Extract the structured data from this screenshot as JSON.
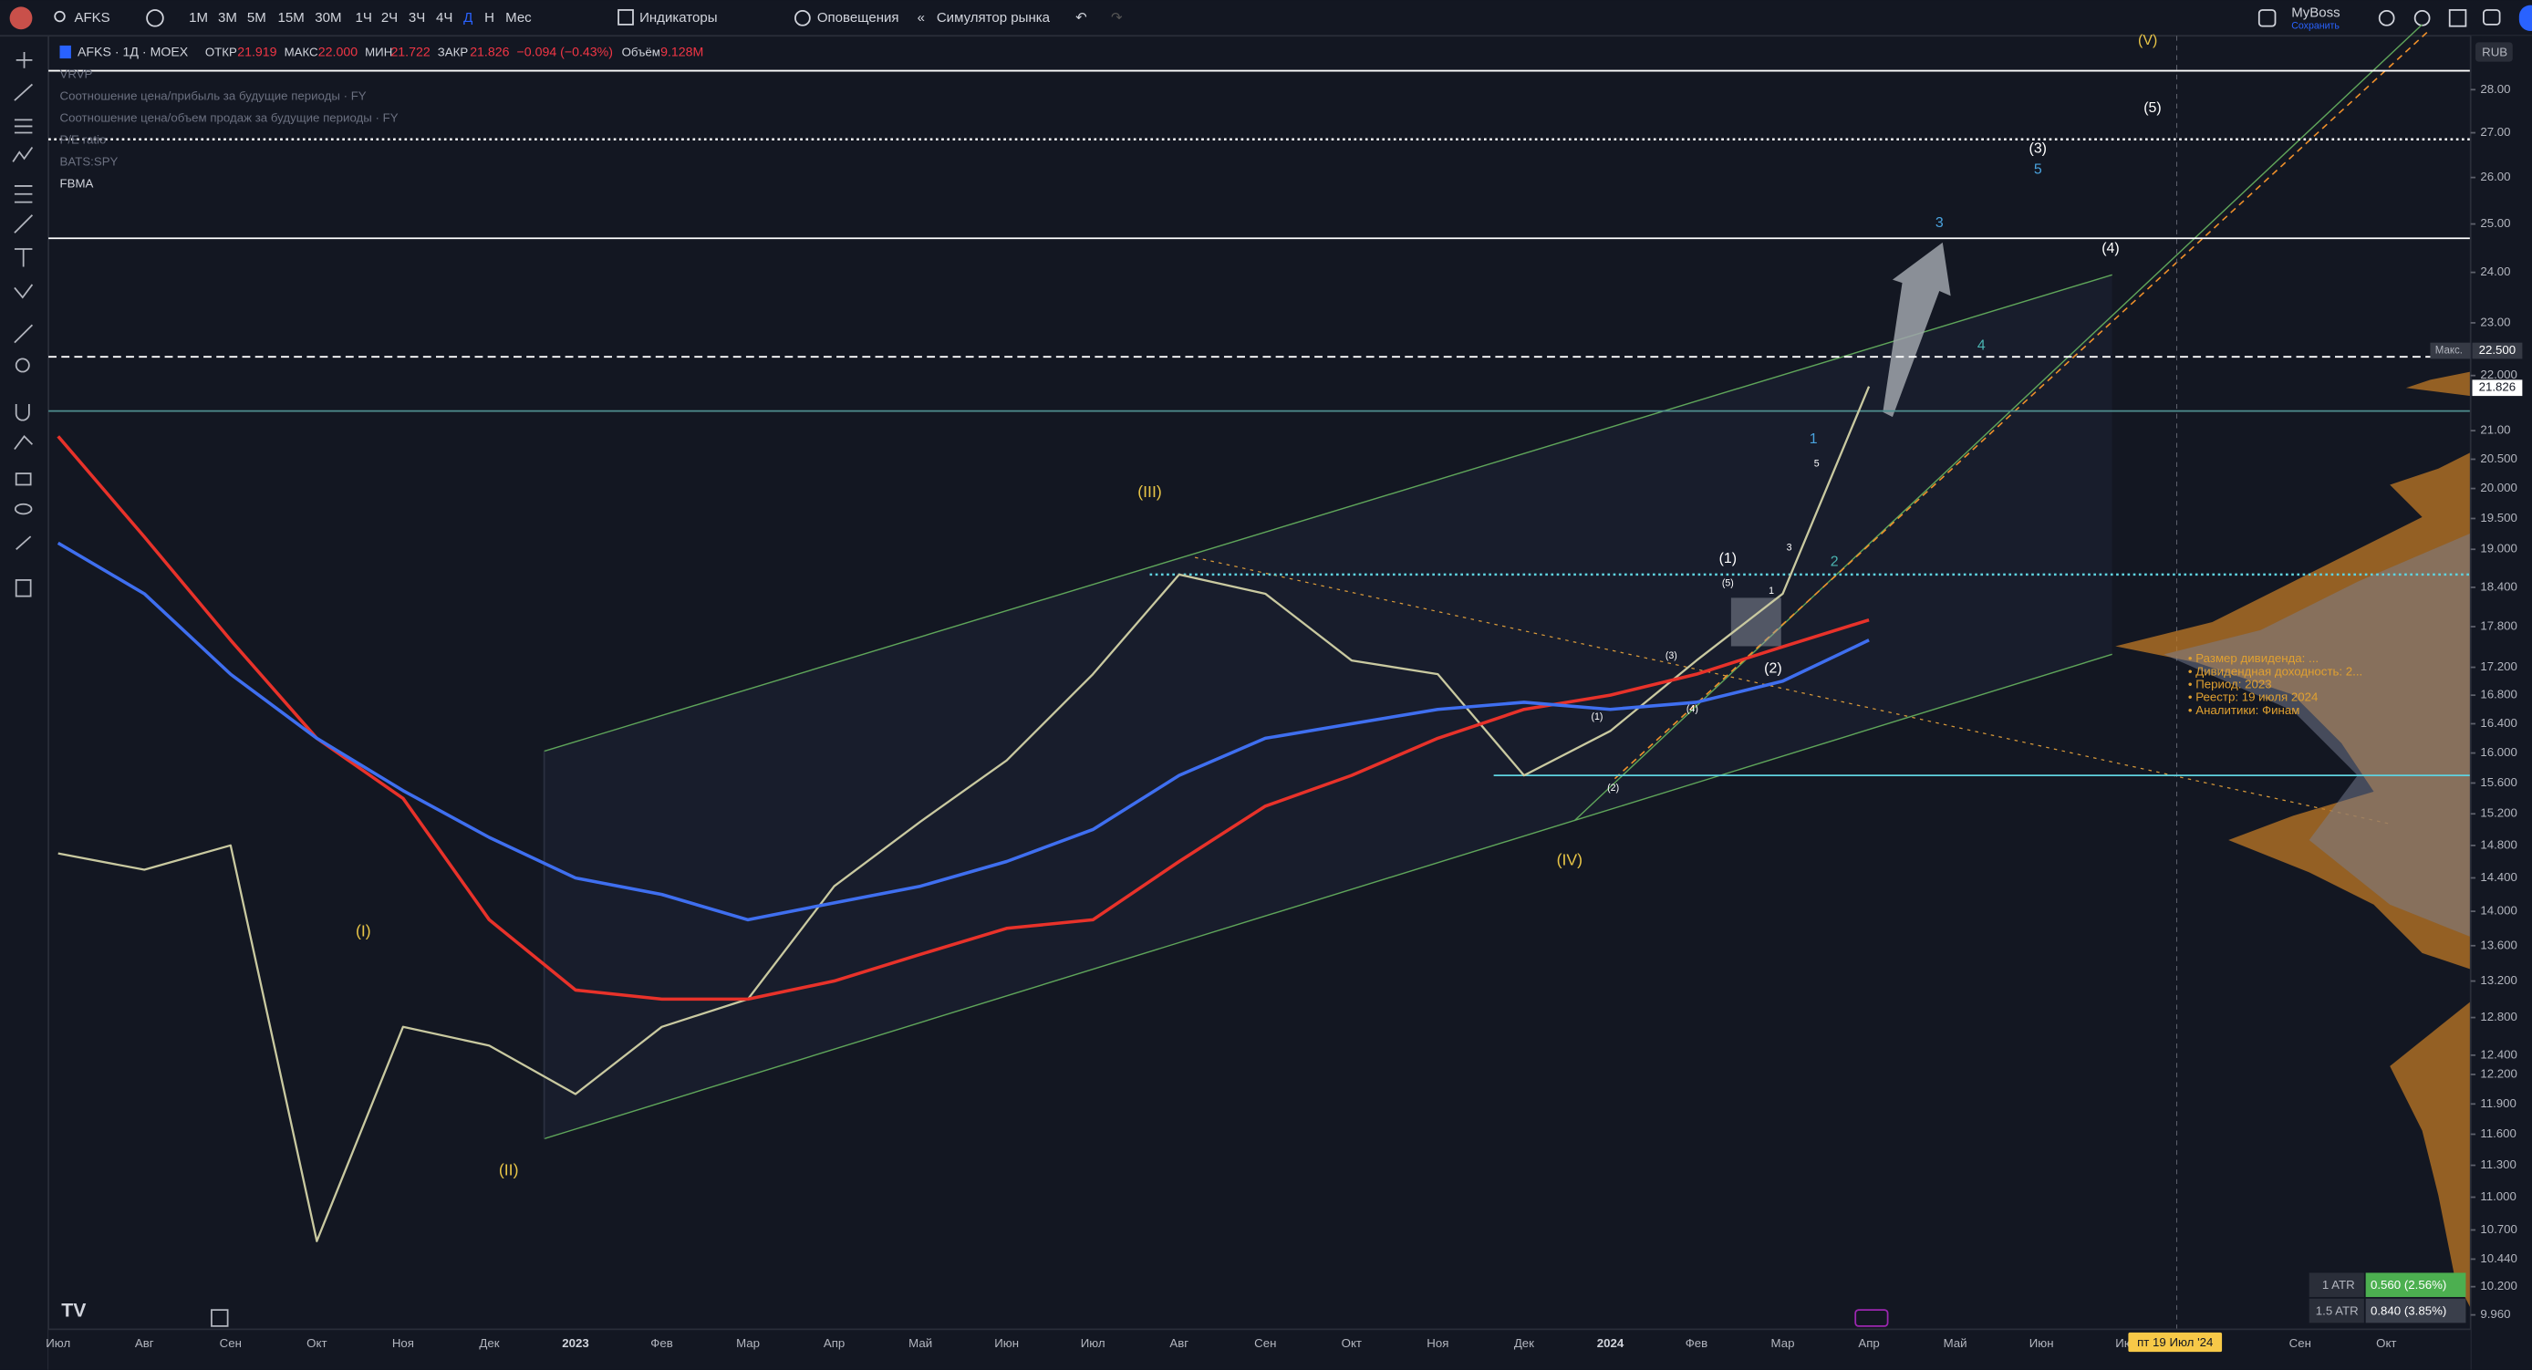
{
  "toolbar": {
    "symbol": "AFKS",
    "intervals": [
      "1M",
      "3M",
      "5M",
      "15M",
      "30M",
      "1Ч",
      "2Ч",
      "3Ч",
      "4Ч",
      "Д",
      "Н",
      "Мес"
    ],
    "indicators": "Индикаторы",
    "alerts": "Оповещения",
    "replay": "Симулятор рынка",
    "account": "MyBoss",
    "save": "Сохранить"
  },
  "legend": {
    "title": "AFKS · 1Д · MOEX",
    "open_label": "ОТКР",
    "open": "21.919",
    "high_label": "МАКС",
    "high": "22.000",
    "low_label": "МИН",
    "low": "21.722",
    "close_label": "ЗАКР",
    "close": "21.826",
    "change": "−0.094 (−0.43%)",
    "volume_label": "Объём",
    "volume": "9.128M",
    "studies": [
      "VRVP",
      "Соотношение цена/прибыль за будущие периоды · FY",
      "Соотношение цена/объем продаж за будущие периоды · FY",
      "P/E ratio",
      "BATS:SPY",
      "FBMA"
    ]
  },
  "dividend_note": [
    "• Размер дивиденда: ...",
    "• Дивидендная доходность: 2...",
    "• Период: 2023",
    "• Реестр: 19 июля 2024",
    "• Аналитики: Финам"
  ],
  "price_scale": {
    "currency": "RUB",
    "max_label": "Макс.",
    "max": "22.500",
    "last": "21.826"
  },
  "atr": [
    {
      "label": "1 ATR",
      "value": "0.560 (2.56%)"
    },
    {
      "label": "1.5 ATR",
      "value": "0.840 (3.85%)"
    }
  ],
  "crosshair_date": "пт 19 Июл '24",
  "chart_data": {
    "type": "line",
    "log_scale": true,
    "categories": [
      "Июл",
      "Авг",
      "Сен",
      "Окт",
      "Ноя",
      "Дек",
      "2023",
      "Фев",
      "Мар",
      "Апр",
      "Май",
      "Июн",
      "Июл",
      "Авг",
      "Сен",
      "Окт",
      "Ноя",
      "Дек",
      "2024",
      "Фев",
      "Мар",
      "Апр",
      "Май",
      "Июн",
      "Июл",
      null,
      "Сен",
      "Окт"
    ],
    "series": [
      {
        "name": "AFKS",
        "color": "#c9c9a0",
        "values": [
          14.7,
          14.5,
          14.8,
          10.6,
          12.7,
          12.5,
          12.0,
          12.7,
          13.0,
          14.3,
          15.1,
          15.9,
          17.1,
          18.6,
          18.3,
          17.3,
          17.1,
          15.7,
          16.3,
          17.3,
          18.3,
          21.8,
          null,
          null,
          null,
          null,
          null,
          null
        ]
      },
      {
        "name": "MA 200",
        "color": "#e8322a",
        "values": [
          20.9,
          19.2,
          17.6,
          16.2,
          15.4,
          13.9,
          13.1,
          13.0,
          13.0,
          13.2,
          13.5,
          13.8,
          13.9,
          14.6,
          15.3,
          15.7,
          16.2,
          16.6,
          16.8,
          17.1,
          17.5,
          17.9,
          null,
          null,
          null,
          null,
          null,
          null
        ]
      },
      {
        "name": "MA 100",
        "color": "#3f6ff0",
        "values": [
          19.1,
          18.3,
          17.1,
          16.2,
          15.5,
          14.9,
          14.4,
          14.2,
          13.9,
          14.1,
          14.3,
          14.6,
          15.0,
          15.7,
          16.2,
          16.4,
          16.6,
          16.7,
          16.6,
          16.7,
          17.0,
          17.6,
          null,
          null,
          null,
          null,
          null,
          null
        ]
      }
    ],
    "ylim": [
      9.88,
      29.3
    ],
    "yticks": [
      {
        "value": 28,
        "label": "28.00"
      },
      {
        "value": 27,
        "label": "27.00"
      },
      {
        "value": 26,
        "label": "26.00"
      },
      {
        "value": 25,
        "label": "25.00"
      },
      {
        "value": 24,
        "label": "24.00"
      },
      {
        "value": 23,
        "label": "23.00"
      },
      {
        "value": 22,
        "label": "22.000"
      },
      {
        "value": 21,
        "label": "21.00"
      },
      {
        "value": 20.5,
        "label": "20.500"
      },
      {
        "value": 20,
        "label": "20.000"
      },
      {
        "value": 19.5,
        "label": "19.500"
      },
      {
        "value": 19,
        "label": "19.000"
      },
      {
        "value": 18.4,
        "label": "18.400"
      },
      {
        "value": 17.8,
        "label": "17.800"
      },
      {
        "value": 17.2,
        "label": "17.200"
      },
      {
        "value": 16.8,
        "label": "16.800"
      },
      {
        "value": 16.4,
        "label": "16.400"
      },
      {
        "value": 16,
        "label": "16.000"
      },
      {
        "value": 15.6,
        "label": "15.600"
      },
      {
        "value": 15.2,
        "label": "15.200"
      },
      {
        "value": 14.8,
        "label": "14.800"
      },
      {
        "value": 14.4,
        "label": "14.400"
      },
      {
        "value": 14,
        "label": "14.000"
      },
      {
        "value": 13.6,
        "label": "13.600"
      },
      {
        "value": 13.2,
        "label": "13.200"
      },
      {
        "value": 12.8,
        "label": "12.800"
      },
      {
        "value": 12.4,
        "label": "12.400"
      },
      {
        "value": 12.2,
        "label": "12.200"
      },
      {
        "value": 11.9,
        "label": "11.900"
      },
      {
        "value": 11.6,
        "label": "11.600"
      },
      {
        "value": 11.3,
        "label": "11.300"
      },
      {
        "value": 11,
        "label": "11.000"
      },
      {
        "value": 10.7,
        "label": "10.700"
      },
      {
        "value": 10.44,
        "label": "10.440"
      },
      {
        "value": 10.2,
        "label": "10.200"
      },
      {
        "value": 9.96,
        "label": "9.960"
      }
    ],
    "levels": [
      {
        "value": 28.45,
        "style": "solid",
        "color": "#ffffff"
      },
      {
        "value": 26.85,
        "style": "dotted",
        "color": "#ffffff"
      },
      {
        "value": 24.7,
        "style": "solid",
        "color": "#ffffff"
      },
      {
        "value": 22.35,
        "style": "dashed",
        "color": "#ffffff"
      },
      {
        "value": 21.35,
        "style": "solid",
        "color": "#4f8f8f"
      },
      {
        "value": 18.6,
        "style": "dotted",
        "color": "#5fd3e0"
      },
      {
        "value": 15.7,
        "style": "solid",
        "color": "#5fd3e0"
      }
    ],
    "annotations": [
      "(V)",
      "(5)",
      "(3)",
      "5",
      "3",
      "(4)",
      "4",
      "1",
      "5",
      "(1)",
      "3",
      "2",
      "(5)",
      "1",
      "(3)",
      "(2)",
      "(1)",
      "(4)",
      "(2)",
      "(III)",
      "(IV)",
      "(I)",
      "(II)"
    ]
  }
}
